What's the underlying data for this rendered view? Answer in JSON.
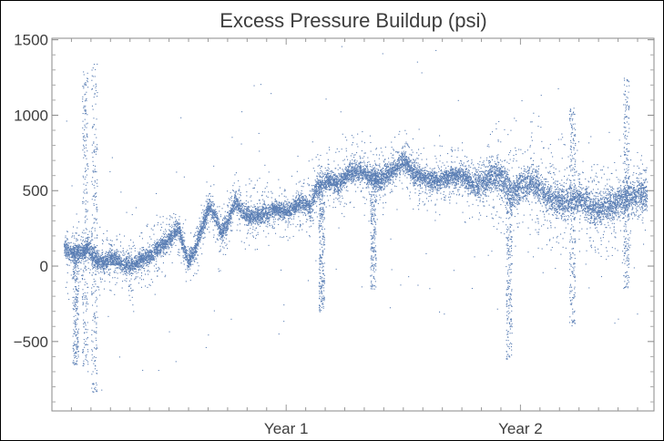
{
  "chart_data": {
    "type": "scatter",
    "title": "Excess Pressure Buildup (psi)",
    "xlabel": "",
    "ylabel": "",
    "x_unit": "years",
    "xlim": [
      0,
      2.57
    ],
    "ylim": [
      -960,
      1510
    ],
    "y_ticks": [
      1500,
      1000,
      500,
      0,
      -500
    ],
    "y_tick_labels": [
      "1500",
      "1000",
      "500",
      "0",
      "−500"
    ],
    "x_ticks": [
      1.0,
      2.0
    ],
    "x_tick_labels": [
      "Year 1",
      "Year 2"
    ],
    "grid": false,
    "point_color": "#5b7fb5",
    "trend_points": [
      {
        "x": 0.05,
        "y": 130
      },
      {
        "x": 0.09,
        "y": 85
      },
      {
        "x": 0.13,
        "y": 95
      },
      {
        "x": 0.15,
        "y": 135
      },
      {
        "x": 0.17,
        "y": 70
      },
      {
        "x": 0.2,
        "y": 40
      },
      {
        "x": 0.22,
        "y": 20
      },
      {
        "x": 0.25,
        "y": 60
      },
      {
        "x": 0.28,
        "y": 40
      },
      {
        "x": 0.31,
        "y": 10
      },
      {
        "x": 0.35,
        "y": 20
      },
      {
        "x": 0.4,
        "y": 60
      },
      {
        "x": 0.45,
        "y": 120
      },
      {
        "x": 0.5,
        "y": 180
      },
      {
        "x": 0.54,
        "y": 250
      },
      {
        "x": 0.56,
        "y": 130
      },
      {
        "x": 0.58,
        "y": 30
      },
      {
        "x": 0.61,
        "y": 120
      },
      {
        "x": 0.64,
        "y": 250
      },
      {
        "x": 0.67,
        "y": 410
      },
      {
        "x": 0.7,
        "y": 320
      },
      {
        "x": 0.72,
        "y": 220
      },
      {
        "x": 0.75,
        "y": 300
      },
      {
        "x": 0.78,
        "y": 430
      },
      {
        "x": 0.82,
        "y": 350
      },
      {
        "x": 0.86,
        "y": 330
      },
      {
        "x": 0.9,
        "y": 350
      },
      {
        "x": 0.95,
        "y": 380
      },
      {
        "x": 1.0,
        "y": 360
      },
      {
        "x": 1.05,
        "y": 420
      },
      {
        "x": 1.1,
        "y": 400
      },
      {
        "x": 1.13,
        "y": 520
      },
      {
        "x": 1.18,
        "y": 580
      },
      {
        "x": 1.22,
        "y": 540
      },
      {
        "x": 1.26,
        "y": 610
      },
      {
        "x": 1.3,
        "y": 640
      },
      {
        "x": 1.35,
        "y": 600
      },
      {
        "x": 1.4,
        "y": 570
      },
      {
        "x": 1.45,
        "y": 630
      },
      {
        "x": 1.5,
        "y": 700
      },
      {
        "x": 1.55,
        "y": 610
      },
      {
        "x": 1.6,
        "y": 580
      },
      {
        "x": 1.65,
        "y": 560
      },
      {
        "x": 1.7,
        "y": 600
      },
      {
        "x": 1.75,
        "y": 610
      },
      {
        "x": 1.8,
        "y": 540
      },
      {
        "x": 1.85,
        "y": 560
      },
      {
        "x": 1.88,
        "y": 630
      },
      {
        "x": 1.92,
        "y": 580
      },
      {
        "x": 1.96,
        "y": 470
      },
      {
        "x": 2.0,
        "y": 530
      },
      {
        "x": 2.05,
        "y": 560
      },
      {
        "x": 2.1,
        "y": 480
      },
      {
        "x": 2.15,
        "y": 440
      },
      {
        "x": 2.2,
        "y": 420
      },
      {
        "x": 2.25,
        "y": 460
      },
      {
        "x": 2.3,
        "y": 390
      },
      {
        "x": 2.35,
        "y": 380
      },
      {
        "x": 2.4,
        "y": 420
      },
      {
        "x": 2.45,
        "y": 450
      },
      {
        "x": 2.5,
        "y": 480
      },
      {
        "x": 2.54,
        "y": 480
      }
    ],
    "spikes": [
      {
        "x": 0.1,
        "min": -650,
        "max": 150
      },
      {
        "x": 0.14,
        "min": -700,
        "max": 1300
      },
      {
        "x": 0.18,
        "min": -850,
        "max": 1350
      },
      {
        "x": 1.15,
        "min": -300,
        "max": 500
      },
      {
        "x": 1.37,
        "min": -150,
        "max": 650
      },
      {
        "x": 1.95,
        "min": -620,
        "max": 600
      },
      {
        "x": 2.22,
        "min": -400,
        "max": 1050
      },
      {
        "x": 2.45,
        "min": -150,
        "max": 1250
      }
    ]
  }
}
